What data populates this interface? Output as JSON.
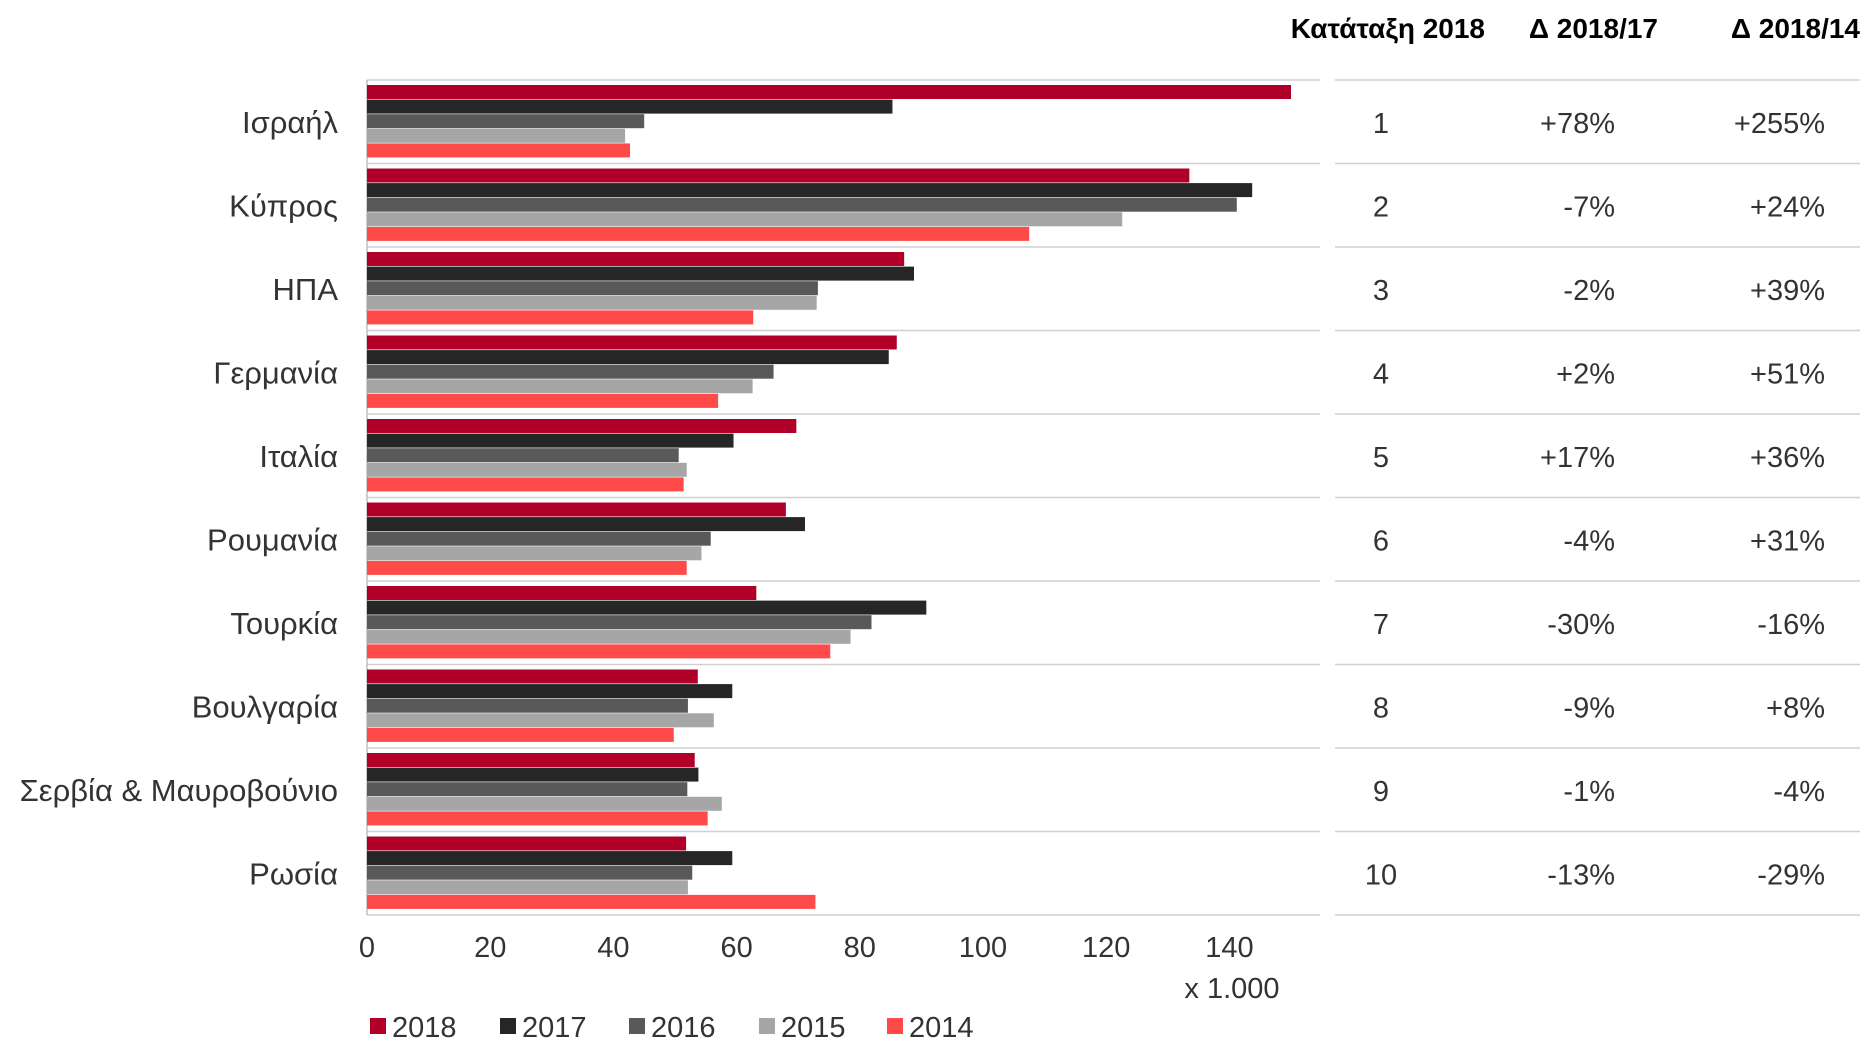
{
  "chart_data": {
    "type": "bar",
    "orientation": "horizontal",
    "title": "",
    "xlabel": "x 1.000",
    "ylabel": "",
    "xlim": [
      0,
      150
    ],
    "x_ticks": [
      0,
      20,
      40,
      60,
      80,
      100,
      120,
      140
    ],
    "grid": false,
    "legend_position": "bottom-left",
    "categories": [
      "Ισραήλ",
      "Κύπρος",
      "ΗΠΑ",
      "Γερμανία",
      "Ιταλία",
      "Ρουμανία",
      "Τουρκία",
      "Βουλγαρία",
      "Σερβία & Μαυροβούνιο",
      "Ρωσία"
    ],
    "series": [
      {
        "name": "2018",
        "color": "#b0002a",
        "values": [
          151.5,
          133.5,
          87.2,
          86.0,
          69.7,
          68.0,
          63.2,
          53.7,
          53.2,
          51.8
        ]
      },
      {
        "name": "2017",
        "color": "#262626",
        "values": [
          85.3,
          143.7,
          88.8,
          84.7,
          59.5,
          71.1,
          90.8,
          59.3,
          53.8,
          59.3
        ]
      },
      {
        "name": "2016",
        "color": "#595959",
        "values": [
          45.0,
          141.2,
          73.2,
          66.0,
          50.6,
          55.8,
          81.9,
          52.1,
          52.0,
          52.8
        ]
      },
      {
        "name": "2015",
        "color": "#a6a6a6",
        "values": [
          41.9,
          122.6,
          73.0,
          62.6,
          51.9,
          54.3,
          78.5,
          56.3,
          57.6,
          52.1
        ]
      },
      {
        "name": "2014",
        "color": "#ff4a4a",
        "values": [
          42.7,
          107.5,
          62.7,
          57.0,
          51.4,
          51.9,
          75.2,
          49.8,
          55.3,
          72.8
        ]
      }
    ],
    "table": {
      "headers": [
        "Κατάταξη 2018",
        "Δ 2018/17",
        "Δ 2018/14"
      ],
      "rows": [
        {
          "rank": "1",
          "d17": "+78%",
          "d14": "+255%"
        },
        {
          "rank": "2",
          "d17": "-7%",
          "d14": "+24%"
        },
        {
          "rank": "3",
          "d17": "-2%",
          "d14": "+39%"
        },
        {
          "rank": "4",
          "d17": "+2%",
          "d14": "+51%"
        },
        {
          "rank": "5",
          "d17": "+17%",
          "d14": "+36%"
        },
        {
          "rank": "6",
          "d17": "-4%",
          "d14": "+31%"
        },
        {
          "rank": "7",
          "d17": "-30%",
          "d14": "-16%"
        },
        {
          "rank": "8",
          "d17": "-9%",
          "d14": "+8%"
        },
        {
          "rank": "9",
          "d17": "-1%",
          "d14": "-4%"
        },
        {
          "rank": "10",
          "d17": "-13%",
          "d14": "-29%"
        }
      ],
      "positive_color": "#333333",
      "negative_color": "#ff0000"
    }
  }
}
